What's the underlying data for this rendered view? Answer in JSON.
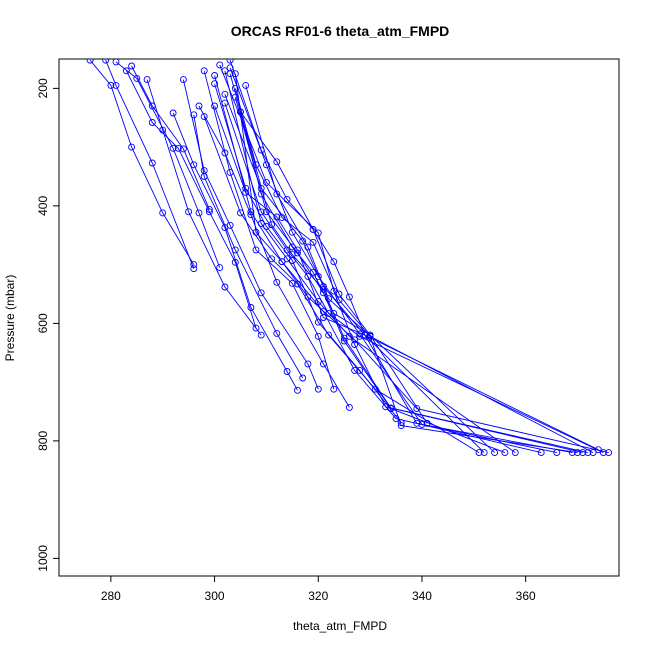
{
  "chart_data": {
    "type": "line",
    "title": "ORCAS RF01-6 theta_atm_FMPD",
    "xlabel": "theta_atm_FMPD",
    "ylabel": "Pressure (mbar)",
    "xlim": [
      270,
      378
    ],
    "ylim": [
      1030,
      150
    ],
    "y_reversed": true,
    "x_ticks": [
      280,
      300,
      320,
      340,
      360
    ],
    "y_ticks": [
      200,
      400,
      600,
      800,
      1000
    ],
    "grid": false,
    "legend": "none",
    "point_style": "open-circle",
    "color": "#0000ff",
    "series": [
      {
        "x": [
          296,
          290,
          284,
          280,
          276
        ],
        "y": [
          500,
          412,
          300,
          195,
          152
        ]
      },
      {
        "x": [
          296,
          288,
          281,
          279
        ],
        "y": [
          507,
          327,
          195,
          152
        ]
      },
      {
        "x": [
          299,
          294,
          288,
          284
        ],
        "y": [
          406,
          303,
          230,
          162
        ]
      },
      {
        "x": [
          301,
          297,
          292,
          285,
          281
        ],
        "y": [
          505,
          412,
          302,
          183,
          155
        ]
      },
      {
        "x": [
          308,
          304,
          299,
          293,
          288,
          283
        ],
        "y": [
          608,
          496,
          410,
          302,
          258,
          170
        ]
      },
      {
        "x": [
          309,
          302,
          295,
          290,
          287
        ],
        "y": [
          620,
          538,
          410,
          271,
          185
        ]
      },
      {
        "x": [
          316,
          314,
          307,
          302,
          296,
          292
        ],
        "y": [
          714,
          682,
          573,
          437,
          330,
          242
        ]
      },
      {
        "x": [
          317,
          312,
          304,
          298,
          296
        ],
        "y": [
          693,
          617,
          475,
          350,
          245
        ]
      },
      {
        "x": [
          320,
          318,
          309,
          303,
          298,
          294
        ],
        "y": [
          712,
          669,
          548,
          433,
          340,
          185
        ]
      },
      {
        "x": [
          323,
          320,
          315,
          308,
          303,
          298
        ],
        "y": [
          712,
          622,
          532,
          475,
          343,
          170
        ]
      },
      {
        "x": [
          326,
          321,
          312,
          307,
          302,
          297
        ],
        "y": [
          743,
          669,
          530,
          415,
          310,
          230
        ]
      },
      {
        "x": [
          336,
          328,
          320,
          315,
          310,
          306,
          300
        ],
        "y": [
          769,
          680,
          598,
          493,
          435,
          370,
          192
        ]
      },
      {
        "x": [
          341,
          330,
          324,
          319,
          314,
          309,
          303
        ],
        "y": [
          770,
          620,
          550,
          440,
          389,
          305,
          152
        ]
      },
      {
        "x": [
          351,
          331,
          322,
          316,
          311,
          305,
          298
        ],
        "y": [
          820,
          712,
          620,
          533,
          490,
          412,
          248
        ]
      },
      {
        "x": [
          352,
          329,
          321,
          316,
          312,
          306,
          300
        ],
        "y": [
          820,
          620,
          590,
          475,
          419,
          377,
          230
        ]
      },
      {
        "x": [
          354,
          330,
          323,
          319,
          315,
          309,
          305
        ],
        "y": [
          820,
          620,
          583,
          513,
          470,
          380,
          240
        ]
      },
      {
        "x": [
          356,
          334,
          325,
          321,
          316,
          310,
          304
        ],
        "y": [
          820,
          745,
          630,
          548,
          480,
          410,
          215
        ]
      },
      {
        "x": [
          358,
          326,
          320,
          314,
          309,
          302
        ],
        "y": [
          820,
          622,
          563,
          490,
          430,
          170
        ]
      },
      {
        "x": [
          363,
          335,
          327,
          321,
          313,
          307,
          300
        ],
        "y": [
          820,
          762,
          680,
          580,
          495,
          410,
          178
        ]
      },
      {
        "x": [
          366,
          339,
          329,
          321,
          317,
          309,
          302
        ],
        "y": [
          820,
          770,
          620,
          537,
          460,
          370,
          210
        ]
      },
      {
        "x": [
          369,
          340,
          328,
          320,
          315,
          310,
          303
        ],
        "y": [
          820,
          772,
          618,
          520,
          445,
          330,
          165
        ]
      },
      {
        "x": [
          370,
          336,
          330,
          322,
          318,
          312,
          306
        ],
        "y": [
          820,
          774,
          622,
          558,
          470,
          380,
          195
        ]
      },
      {
        "x": [
          371,
          333,
          327,
          323,
          320,
          310,
          301
        ],
        "y": [
          820,
          742,
          636,
          545,
          446,
          360,
          160
        ]
      },
      {
        "x": [
          372,
          334,
          325,
          321,
          315,
          311,
          303
        ],
        "y": [
          820,
          744,
          625,
          542,
          483,
          432,
          175
        ]
      },
      {
        "x": [
          373,
          330,
          324,
          319,
          313,
          308,
          304
        ],
        "y": [
          820,
          622,
          560,
          462,
          420,
          330,
          200
        ]
      },
      {
        "x": [
          374,
          329,
          326,
          323,
          319,
          312,
          305
        ],
        "y": [
          815,
          620,
          555,
          495,
          440,
          325,
          240
        ]
      },
      {
        "x": [
          375,
          328,
          322,
          318,
          314,
          309,
          302
        ],
        "y": [
          820,
          622,
          583,
          520,
          475,
          410,
          225
        ]
      },
      {
        "x": [
          376,
          339,
          327,
          318,
          313,
          308,
          304
        ],
        "y": [
          820,
          745,
          628,
          555,
          495,
          445,
          175
        ]
      }
    ]
  }
}
